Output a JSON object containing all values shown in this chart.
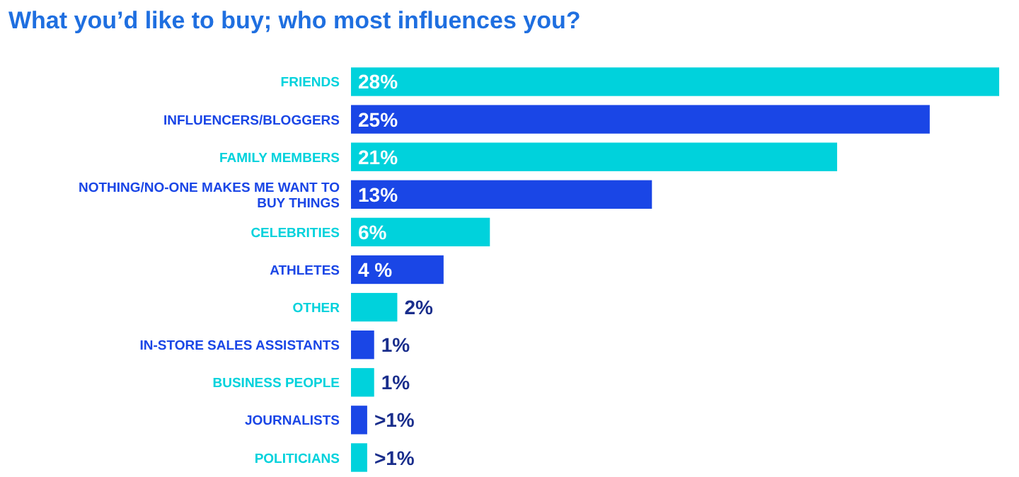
{
  "chart_data": {
    "type": "bar",
    "orientation": "horizontal",
    "title": "What you’d like to buy; who most influences you?",
    "categories": [
      "FRIENDS",
      "INFLUENCERS/BLOGGERS",
      "FAMILY MEMBERS",
      "NOTHING/NO-ONE MAKES ME WANT TO BUY THINGS",
      "CELEBRITIES",
      "ATHLETES",
      "OTHER",
      "IN-STORE SALES ASSISTANTS",
      "BUSINESS PEOPLE",
      "JOURNALISTS",
      "POLITICIANS"
    ],
    "values": [
      28,
      25,
      21,
      13,
      6,
      4,
      2,
      1,
      1,
      0.7,
      0.7
    ],
    "value_labels": [
      "28%",
      "25%",
      "21%",
      "13%",
      "6%",
      "4 %",
      "2%",
      "1%",
      "1%",
      ">1%",
      ">1%"
    ],
    "colors": [
      "#00d2dc",
      "#1a46e6",
      "#00d2dc",
      "#1a46e6",
      "#00d2dc",
      "#1a46e6",
      "#00d2dc",
      "#1a46e6",
      "#00d2dc",
      "#1a46e6",
      "#00d2dc"
    ]
  }
}
